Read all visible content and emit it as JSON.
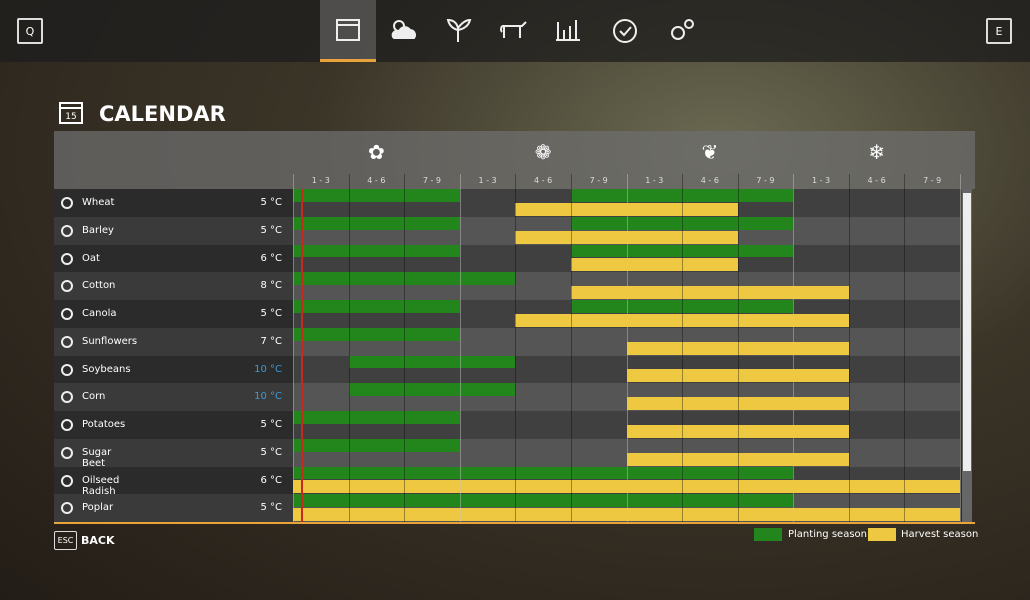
{
  "nav": {
    "left_key": "Q",
    "right_key": "E"
  },
  "header": {
    "title": "CALENDAR"
  },
  "periods": [
    "1 - 3",
    "4 - 6",
    "7 - 9",
    "1 - 3",
    "4 - 6",
    "7 - 9",
    "1 - 3",
    "4 - 6",
    "7 - 9",
    "1 - 3",
    "4 - 6",
    "7 - 9"
  ],
  "crops": [
    {
      "name": "Wheat",
      "temp": "5 °C",
      "planting": [
        [
          0,
          3
        ],
        [
          5,
          9
        ]
      ],
      "harvest": [
        [
          4,
          8
        ]
      ]
    },
    {
      "name": "Barley",
      "temp": "5 °C",
      "planting": [
        [
          0,
          3
        ],
        [
          5,
          9
        ]
      ],
      "harvest": [
        [
          4,
          8
        ]
      ]
    },
    {
      "name": "Oat",
      "temp": "6 °C",
      "planting": [
        [
          0,
          3
        ],
        [
          5,
          9
        ]
      ],
      "harvest": [
        [
          5,
          8
        ]
      ]
    },
    {
      "name": "Cotton",
      "temp": "8 °C",
      "planting": [
        [
          0,
          4
        ]
      ],
      "harvest": [
        [
          5,
          10
        ]
      ]
    },
    {
      "name": "Canola",
      "temp": "5 °C",
      "planting": [
        [
          0,
          3
        ],
        [
          5,
          9
        ]
      ],
      "harvest": [
        [
          4,
          10
        ]
      ]
    },
    {
      "name": "Sunflowers",
      "temp": "7 °C",
      "planting": [
        [
          0,
          3
        ]
      ],
      "harvest": [
        [
          6,
          10
        ]
      ]
    },
    {
      "name": "Soybeans",
      "temp": "10 °C",
      "temp_color": "#3a9bd9",
      "planting": [
        [
          1,
          4
        ]
      ],
      "harvest": [
        [
          6,
          10
        ]
      ]
    },
    {
      "name": "Corn",
      "temp": "10 °C",
      "temp_color": "#3a9bd9",
      "planting": [
        [
          1,
          4
        ]
      ],
      "harvest": [
        [
          6,
          10
        ]
      ]
    },
    {
      "name": "Potatoes",
      "temp": "5 °C",
      "planting": [
        [
          0,
          3
        ]
      ],
      "harvest": [
        [
          6,
          10
        ]
      ]
    },
    {
      "name": "Sugar Beet",
      "temp": "5 °C",
      "planting": [
        [
          0,
          3
        ]
      ],
      "harvest": [
        [
          6,
          10
        ]
      ]
    },
    {
      "name": "Oilseed Radish",
      "temp": "6 °C",
      "planting": [
        [
          0,
          9
        ]
      ],
      "harvest": [
        [
          0,
          12
        ]
      ]
    },
    {
      "name": "Poplar",
      "temp": "5 °C",
      "planting": [
        [
          0,
          9
        ]
      ],
      "harvest": [
        [
          0,
          12
        ]
      ]
    }
  ],
  "legend": {
    "planting": {
      "label": "Planting season",
      "color": "#23861c"
    },
    "harvest": {
      "label": "Harvest season",
      "color": "#edc840"
    }
  },
  "footer": {
    "key": "ESC",
    "label": "BACK"
  }
}
